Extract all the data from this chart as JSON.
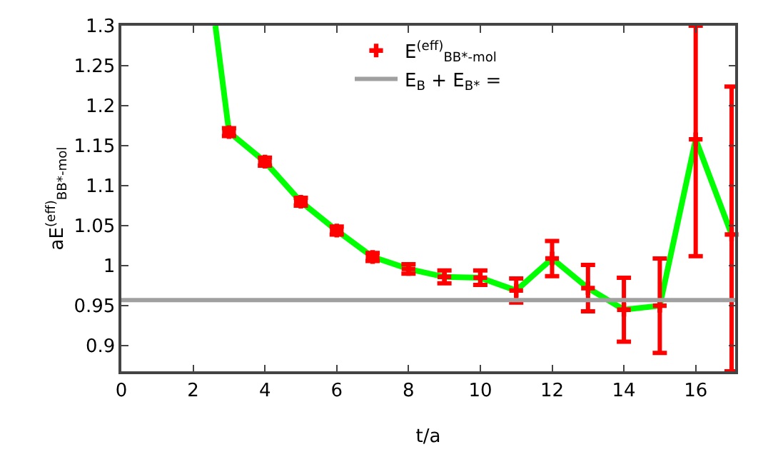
{
  "chart_data": {
    "type": "scatter",
    "xlabel": "t/a",
    "ylabel": "aE$^{(eff)}$$_{BB*-mol}$",
    "xlim": [
      0,
      17.1
    ],
    "xticks": [
      0,
      2,
      4,
      6,
      8,
      10,
      12,
      14,
      16
    ],
    "ylim": [
      0.868,
      1.3
    ],
    "yticks": [
      0.9,
      0.95,
      1,
      1.05,
      1.1,
      1.15,
      1.2,
      1.25,
      1.3
    ],
    "grid": false,
    "legend": "top",
    "line_style": "solid",
    "series": [
      {
        "type": "line",
        "color": "#00ff00",
        "x": [
          2.62,
          3,
          4,
          5,
          6,
          7,
          8,
          9,
          10,
          11,
          12,
          13,
          14,
          15,
          16,
          17
        ],
        "values": [
          1.3,
          1.167,
          1.13,
          1.08,
          1.044,
          1.011,
          0.996,
          0.986,
          0.985,
          0.969,
          1.009,
          0.972,
          0.945,
          0.95,
          1.158,
          1.039
        ]
      },
      {
        "name": "E$^{(eff)}$$_{BB*-mol}$",
        "color": "#ff0000",
        "marker": "cross",
        "x": [
          3,
          4,
          5,
          6,
          7,
          8,
          9,
          10,
          11,
          12,
          13,
          14,
          15,
          16,
          17
        ],
        "values": [
          1.167,
          1.13,
          1.08,
          1.044,
          1.011,
          0.996,
          0.986,
          0.985,
          0.969,
          1.009,
          0.972,
          0.945,
          0.95,
          1.158,
          1.039
        ],
        "errors": [
          0.005,
          0.005,
          0.005,
          0.005,
          0.005,
          0.006,
          0.008,
          0.009,
          0.015,
          0.022,
          0.029,
          0.04,
          0.059,
          [
            1.012,
            1.3
          ],
          [
            0.868,
            1.224
          ]
        ]
      }
    ],
    "ref_lines": [
      {
        "axis": "y",
        "value": 0.957,
        "label": "E$_{B}$ + E$_{B*}$ =",
        "color": "#a0a0a0"
      }
    ]
  }
}
